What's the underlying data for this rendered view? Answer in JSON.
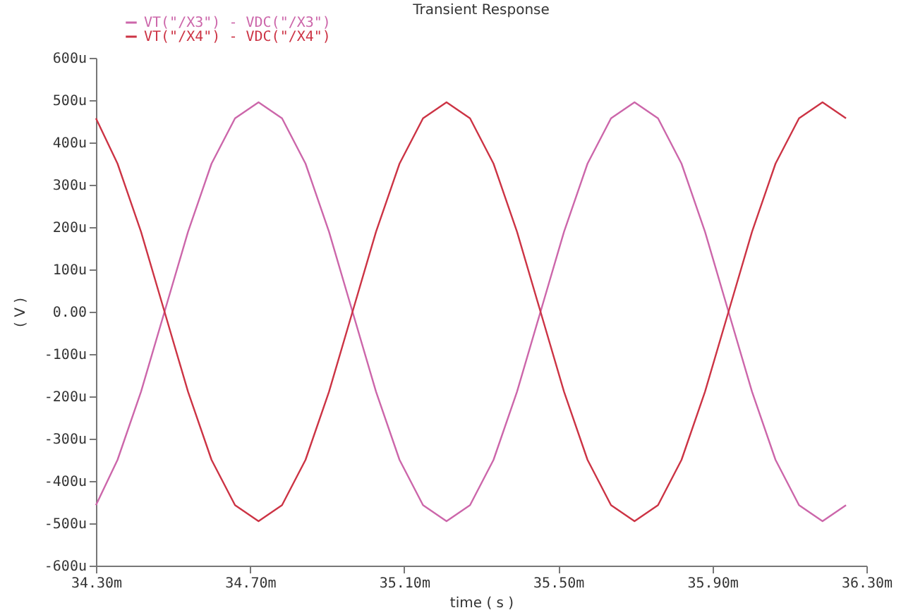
{
  "chart_data": {
    "type": "line",
    "title": "Transient Response",
    "xlabel": "time ( s )",
    "ylabel": "( V )",
    "x": [
      34.3,
      34.356,
      34.417,
      34.478,
      34.539,
      34.6,
      34.661,
      34.722,
      34.783,
      34.844,
      34.905,
      34.966,
      35.027,
      35.088,
      35.149,
      35.21,
      35.271,
      35.332,
      35.393,
      35.454,
      35.515,
      35.576,
      35.637,
      35.698,
      35.759,
      35.82,
      35.881,
      35.942,
      36.003,
      36.064,
      36.125,
      36.186,
      36.247
    ],
    "series": [
      {
        "name": "VT(\"/X3\") - VDC(\"/X3\")",
        "color": "#cc66aa",
        "values": [
          -457,
          -350,
          -189,
          0,
          189,
          350,
          457,
          495,
          457,
          350,
          189,
          0,
          -189,
          -350,
          -457,
          -495,
          -457,
          -350,
          -189,
          0,
          189,
          350,
          457,
          495,
          457,
          350,
          189,
          0,
          -189,
          -350,
          -457,
          -495,
          -457
        ]
      },
      {
        "name": "VT(\"/X4\") - VDC(\"/X4\")",
        "color": "#cc3344",
        "values": [
          457,
          350,
          189,
          0,
          -189,
          -350,
          -457,
          -495,
          -457,
          -350,
          -189,
          0,
          189,
          350,
          457,
          495,
          457,
          350,
          189,
          0,
          -189,
          -350,
          -457,
          -495,
          -457,
          -350,
          -189,
          0,
          189,
          350,
          457,
          495,
          457
        ]
      }
    ],
    "xlim": [
      34.3,
      36.3
    ],
    "xticks": [
      {
        "value": 34.3,
        "label": "34.30m"
      },
      {
        "value": 34.7,
        "label": "34.70m"
      },
      {
        "value": 35.1,
        "label": "35.10m"
      },
      {
        "value": 35.5,
        "label": "35.50m"
      },
      {
        "value": 35.9,
        "label": "35.90m"
      },
      {
        "value": 36.3,
        "label": "36.30m"
      }
    ],
    "ylim": [
      -600,
      600
    ],
    "yticks": [
      {
        "value": -600,
        "label": "-600u"
      },
      {
        "value": -500,
        "label": "-500u"
      },
      {
        "value": -400,
        "label": "-400u"
      },
      {
        "value": -300,
        "label": "-300u"
      },
      {
        "value": -200,
        "label": "-200u"
      },
      {
        "value": -100,
        "label": "-100u"
      },
      {
        "value": 0,
        "label": "0.00"
      },
      {
        "value": 100,
        "label": "100u"
      },
      {
        "value": 200,
        "label": "200u"
      },
      {
        "value": 300,
        "label": "300u"
      },
      {
        "value": 400,
        "label": "400u"
      },
      {
        "value": 500,
        "label": "500u"
      },
      {
        "value": 600,
        "label": "600u"
      }
    ],
    "grid": false,
    "legend": "top left",
    "marker": "none",
    "line_style": "solid"
  }
}
